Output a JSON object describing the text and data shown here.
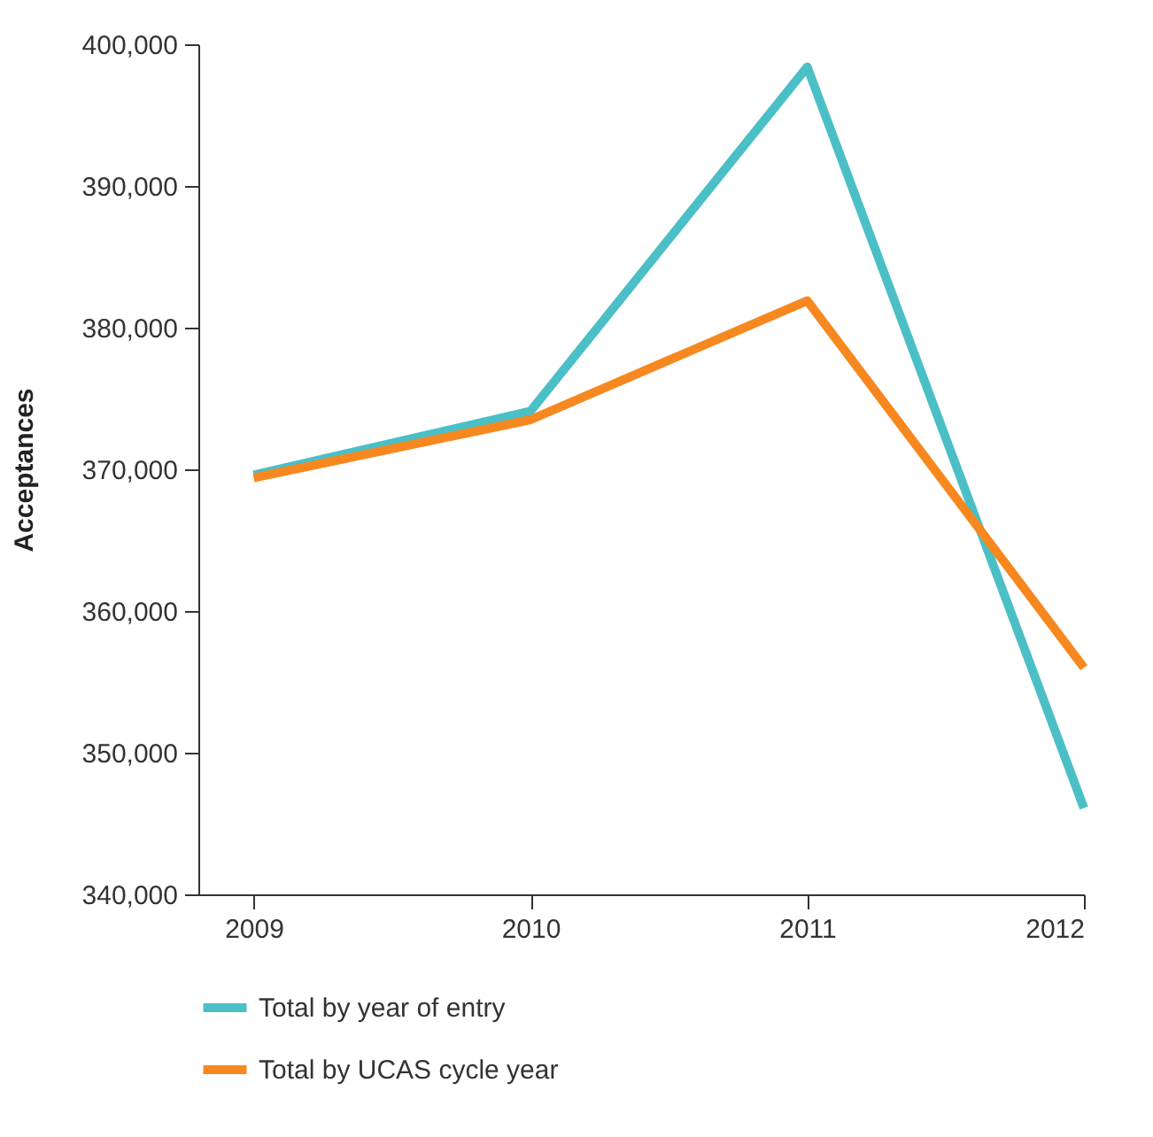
{
  "chart_data": {
    "type": "line",
    "ylabel": "Acceptances",
    "x": [
      2009,
      2010,
      2011,
      2012
    ],
    "xlim": [
      2008.8,
      2012
    ],
    "xticks": [
      2009,
      2010,
      2011,
      2012
    ],
    "ylim": [
      340000,
      400000
    ],
    "yticks": [
      {
        "value": 340000,
        "label": "340,000"
      },
      {
        "value": 350000,
        "label": "350,000"
      },
      {
        "value": 360000,
        "label": "360,000"
      },
      {
        "value": 370000,
        "label": "370,000"
      },
      {
        "value": 380000,
        "label": "380,000"
      },
      {
        "value": 390000,
        "label": "390,000"
      },
      {
        "value": 400000,
        "label": "400,000"
      }
    ],
    "series": [
      {
        "name": "Total by year of entry",
        "color": "#4bbfc6",
        "values": [
          369600,
          374100,
          398400,
          346100
        ]
      },
      {
        "name": "Total by UCAS cycle year",
        "color": "#f7881f",
        "values": [
          369400,
          373500,
          381900,
          356000
        ]
      }
    ],
    "grid": false,
    "legend": "bottom",
    "marker": "none",
    "line_style": "solid"
  }
}
